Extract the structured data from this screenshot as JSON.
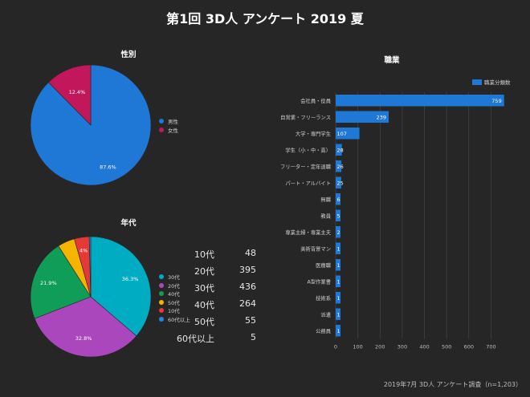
{
  "page": {
    "title": "第1回 3D人 アンケート 2019 夏",
    "footer": "2019年7月 3D人 アンケート調査（n=1,203）"
  },
  "chart_data": [
    {
      "type": "pie",
      "title": "性別",
      "categories": [
        "男性",
        "女性"
      ],
      "values": [
        87.6,
        12.4
      ],
      "value_unit": "%",
      "colors": [
        "#1f77d6",
        "#c2185b"
      ],
      "data_labels": [
        "87.6%",
        "12.4%"
      ],
      "legend": "right"
    },
    {
      "type": "pie",
      "title": "年代",
      "categories": [
        "30代",
        "20代",
        "40代",
        "50代",
        "10代",
        "60代以上"
      ],
      "values": [
        36.3,
        32.8,
        21.9,
        4.6,
        4.0,
        0.4
      ],
      "value_unit": "%",
      "colors": [
        "#00acc1",
        "#ab47bc",
        "#0f9d58",
        "#f4b400",
        "#e53935",
        "#1e88e5"
      ],
      "data_labels": [
        "36.3%",
        "32.8%",
        "21.9%",
        "",
        "4%",
        ""
      ],
      "legend": "right"
    },
    {
      "type": "bar",
      "orientation": "horizontal",
      "title": "職業",
      "categories": [
        "会社員・役員",
        "自営業・フリーランス",
        "大学・専門学生",
        "学生（小・中・高）",
        "フリーター・定年退職",
        "パート・アルバイト",
        "無職",
        "教員",
        "専業主婦・専業主夫",
        "美術背景マン",
        "医療職",
        "A型作業書",
        "技術系",
        "派遣",
        "公務員"
      ],
      "series": [
        {
          "name": "職業分類数",
          "values": [
            759,
            239,
            107,
            28,
            26,
            25,
            6,
            5,
            2,
            1,
            1,
            1,
            1,
            1,
            1
          ]
        }
      ],
      "xlim": [
        0,
        760
      ],
      "ticks": [
        0,
        100,
        200,
        300,
        400,
        500,
        600,
        700
      ],
      "bar_color": "#1f77d6",
      "grid": true,
      "legend": "top-right"
    }
  ],
  "age_table": {
    "rows": [
      {
        "label": "10代",
        "value": "48"
      },
      {
        "label": "20代",
        "value": "395"
      },
      {
        "label": "30代",
        "value": "436"
      },
      {
        "label": "40代",
        "value": "264"
      },
      {
        "label": "50代",
        "value": "55"
      },
      {
        "label": "60代以上",
        "value": "5"
      }
    ]
  }
}
